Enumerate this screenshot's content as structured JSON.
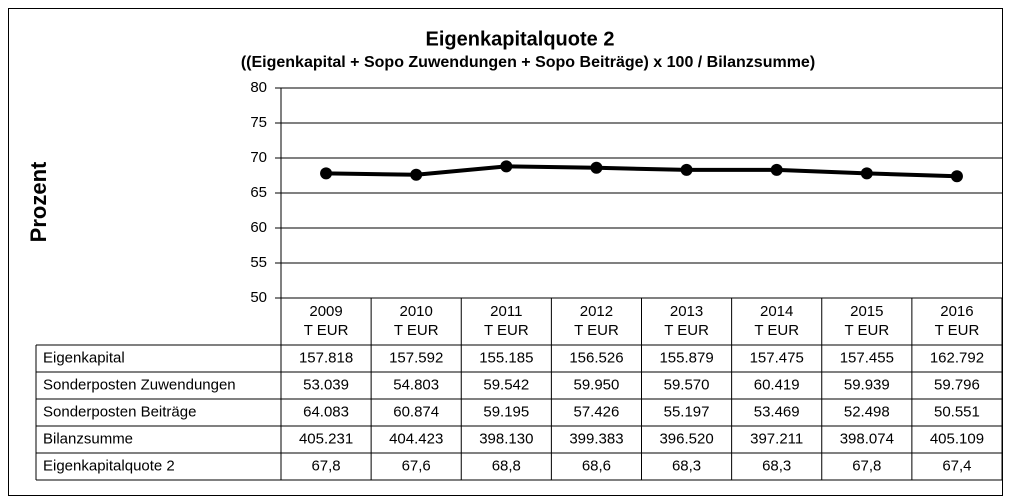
{
  "chart_data": {
    "type": "line",
    "title": "Eigenkapitalquote 2",
    "subtitle": "((Eigenkapital + Sopo Zuwendungen + Sopo Beiträge) x 100 / Bilanzsumme)",
    "y_label": "Prozent",
    "categories": [
      "2009",
      "2010",
      "2011",
      "2012",
      "2013",
      "2014",
      "2015",
      "2016"
    ],
    "category_unit": "T EUR",
    "ylim": [
      50,
      80
    ],
    "yticks": [
      50,
      55,
      60,
      65,
      70,
      75,
      80
    ],
    "grid": true,
    "series": [
      {
        "name": "Eigenkapitalquote 2",
        "color": "#000000",
        "values": [
          67.8,
          67.6,
          68.8,
          68.6,
          68.3,
          68.3,
          67.8,
          67.4
        ],
        "value_labels": [
          "67,8",
          "67,6",
          "68,8",
          "68,6",
          "68,3",
          "68,3",
          "67,8",
          "67,4"
        ]
      }
    ],
    "data_table": [
      {
        "name": "Eigenkapital",
        "values": [
          "157.818",
          "157.592",
          "155.185",
          "156.526",
          "155.879",
          "157.475",
          "157.455",
          "162.792"
        ]
      },
      {
        "name": "Sonderposten Zuwendungen",
        "values": [
          "53.039",
          "54.803",
          "59.542",
          "59.950",
          "59.570",
          "60.419",
          "59.939",
          "59.796"
        ]
      },
      {
        "name": "Sonderposten Beiträge",
        "values": [
          "64.083",
          "60.874",
          "59.195",
          "57.426",
          "55.197",
          "53.469",
          "52.498",
          "50.551"
        ]
      },
      {
        "name": "Bilanzsumme",
        "values": [
          "405.231",
          "404.423",
          "398.130",
          "399.383",
          "396.520",
          "397.211",
          "398.074",
          "405.109"
        ]
      }
    ]
  }
}
